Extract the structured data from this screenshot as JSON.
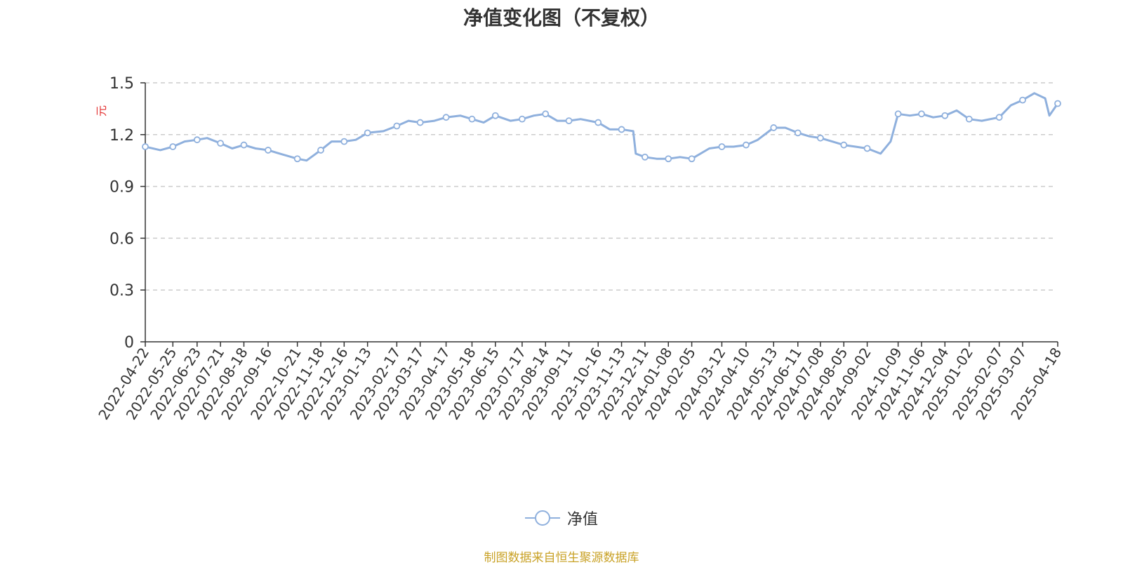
{
  "chart_data": {
    "type": "line",
    "title": "净值变化图（不复权）",
    "ylabel": "元",
    "xlabel": "",
    "ylim": [
      0,
      1.5
    ],
    "y_ticks": [
      "0",
      "0.3",
      "0.6",
      "0.9",
      "1.2",
      "1.5"
    ],
    "grid": "horizontal-dashed",
    "legend_position": "bottom",
    "x_tick_labels": [
      "2022-04-22",
      "2022-05-25",
      "2022-06-23",
      "2022-07-21",
      "2022-08-18",
      "2022-09-16",
      "2022-10-21",
      "2022-11-18",
      "2022-12-16",
      "2023-01-13",
      "2023-02-17",
      "2023-03-17",
      "2023-04-17",
      "2023-05-18",
      "2023-06-15",
      "2023-07-17",
      "2023-08-14",
      "2023-09-11",
      "2023-10-16",
      "2023-11-13",
      "2023-12-11",
      "2024-01-08",
      "2024-02-05",
      "2024-03-12",
      "2024-04-10",
      "2024-05-13",
      "2024-06-11",
      "2024-07-08",
      "2024-08-05",
      "2024-09-02",
      "2024-10-09",
      "2024-11-06",
      "2024-12-04",
      "2025-01-02",
      "2025-02-07",
      "2025-03-07",
      "2025-04-18"
    ],
    "series": [
      {
        "name": "净值",
        "color": "#8fb0dd",
        "x": [
          "2022-04-22",
          "2022-05-10",
          "2022-05-25",
          "2022-06-08",
          "2022-06-23",
          "2022-07-05",
          "2022-07-21",
          "2022-08-04",
          "2022-08-18",
          "2022-09-01",
          "2022-09-16",
          "2022-09-30",
          "2022-10-21",
          "2022-11-01",
          "2022-11-18",
          "2022-12-01",
          "2022-12-16",
          "2022-12-30",
          "2023-01-13",
          "2023-02-01",
          "2023-02-17",
          "2023-03-03",
          "2023-03-17",
          "2023-04-03",
          "2023-04-17",
          "2023-05-04",
          "2023-05-18",
          "2023-06-01",
          "2023-06-15",
          "2023-07-03",
          "2023-07-17",
          "2023-07-31",
          "2023-08-14",
          "2023-08-28",
          "2023-09-11",
          "2023-09-25",
          "2023-10-16",
          "2023-10-30",
          "2023-11-13",
          "2023-11-27",
          "2023-11-30",
          "2023-12-11",
          "2023-12-25",
          "2024-01-08",
          "2024-01-22",
          "2024-02-05",
          "2024-02-26",
          "2024-03-12",
          "2024-03-26",
          "2024-04-10",
          "2024-04-24",
          "2024-05-13",
          "2024-05-27",
          "2024-06-11",
          "2024-06-25",
          "2024-07-08",
          "2024-07-22",
          "2024-08-05",
          "2024-08-19",
          "2024-09-02",
          "2024-09-18",
          "2024-09-30",
          "2024-10-09",
          "2024-10-23",
          "2024-11-06",
          "2024-11-20",
          "2024-12-04",
          "2024-12-18",
          "2025-01-02",
          "2025-01-17",
          "2025-02-07",
          "2025-02-21",
          "2025-03-07",
          "2025-03-21",
          "2025-04-03",
          "2025-04-08",
          "2025-04-18"
        ],
        "values": [
          1.13,
          1.11,
          1.13,
          1.16,
          1.17,
          1.18,
          1.15,
          1.12,
          1.14,
          1.12,
          1.11,
          1.09,
          1.06,
          1.05,
          1.11,
          1.16,
          1.16,
          1.17,
          1.21,
          1.22,
          1.25,
          1.28,
          1.27,
          1.28,
          1.3,
          1.31,
          1.29,
          1.27,
          1.31,
          1.28,
          1.29,
          1.31,
          1.32,
          1.28,
          1.28,
          1.29,
          1.27,
          1.23,
          1.23,
          1.22,
          1.09,
          1.07,
          1.06,
          1.06,
          1.07,
          1.06,
          1.12,
          1.13,
          1.13,
          1.14,
          1.17,
          1.24,
          1.24,
          1.21,
          1.19,
          1.18,
          1.16,
          1.14,
          1.13,
          1.12,
          1.09,
          1.16,
          1.32,
          1.31,
          1.32,
          1.3,
          1.31,
          1.34,
          1.29,
          1.28,
          1.3,
          1.37,
          1.4,
          1.44,
          1.41,
          1.31,
          1.38
        ]
      }
    ]
  },
  "legend": {
    "label": "净值"
  },
  "source_note": "制图数据来自恒生聚源数据库"
}
